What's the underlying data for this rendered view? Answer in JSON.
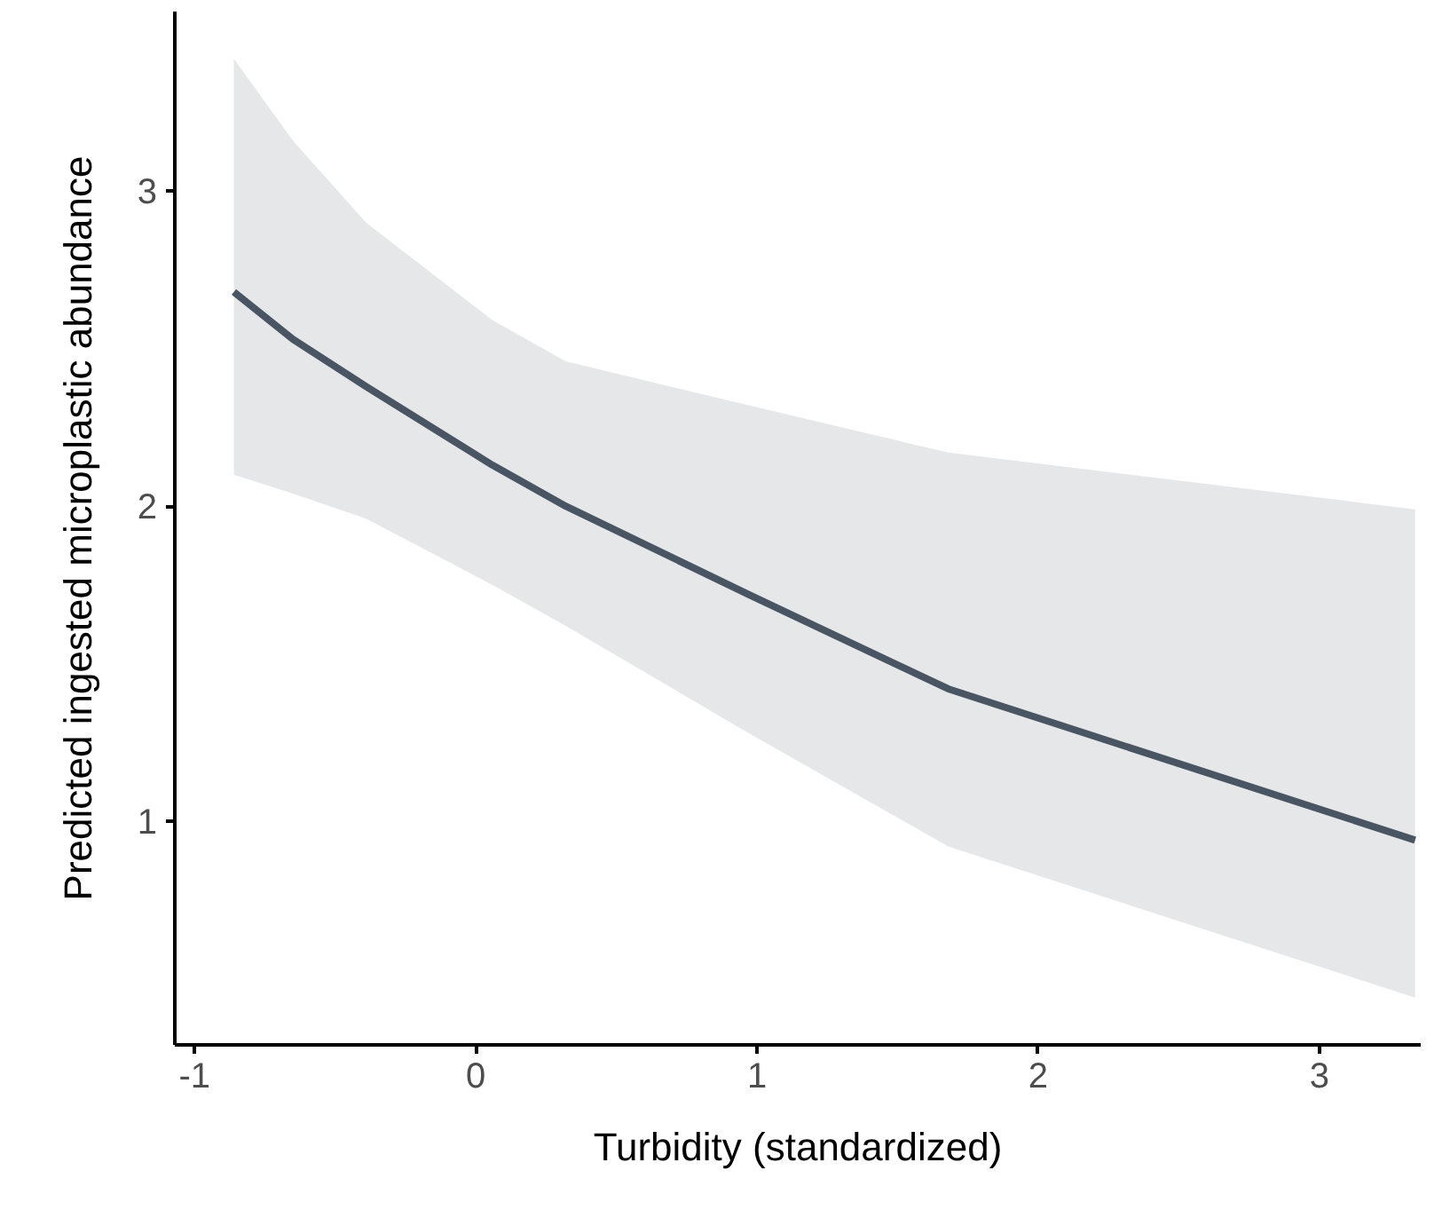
{
  "chart_data": {
    "type": "line",
    "xlabel": "Turbidity (standardized)",
    "ylabel": "Predicted ingested microplastic abundance",
    "x": [
      -0.86,
      -0.65,
      -0.39,
      0.06,
      0.32,
      0.97,
      1.68,
      3.34
    ],
    "series": [
      {
        "color": "#4a5563",
        "values": [
          2.68,
          2.53,
          2.38,
          2.13,
          2.0,
          1.72,
          1.42,
          0.94
        ],
        "lower": [
          2.1,
          2.04,
          1.96,
          1.75,
          1.62,
          1.28,
          0.92,
          0.44
        ],
        "upper": [
          3.42,
          3.16,
          2.9,
          2.59,
          2.46,
          2.32,
          2.17,
          1.99
        ]
      }
    ],
    "xlim": [
      -1.07,
      3.36
    ],
    "ylim": [
      0.29,
      3.57
    ],
    "xticks": [
      -1,
      0,
      1,
      2,
      3
    ],
    "yticks": [
      1,
      2,
      3
    ],
    "line_style": "solid"
  }
}
